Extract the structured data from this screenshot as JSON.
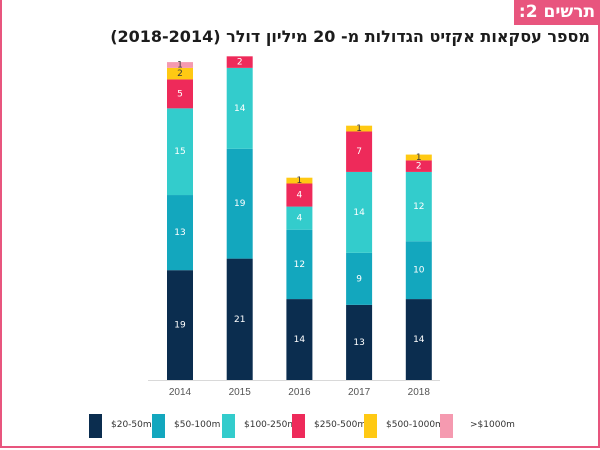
{
  "header": {
    "badge": "תרשים 2:",
    "title": "מספר עסקאות אקזיט הגדולות מ- 20 מיליון דולר (2018-2014)"
  },
  "colors": {
    "frame": "#e8557e",
    "badge_bg": "#e8557e"
  },
  "chart_data": {
    "type": "bar",
    "stacked": true,
    "title": "מספר עסקאות אקזיט הגדולות מ- 20 מיליון דולר (2018-2014)",
    "xlabel": "",
    "ylabel": "",
    "ylim": [
      0,
      56
    ],
    "grid": false,
    "legend_position": "bottom",
    "categories": [
      "2014",
      "2015",
      "2016",
      "2017",
      "2018"
    ],
    "series": [
      {
        "name": "$20-50m",
        "color": "#0b2d4f",
        "values": [
          19,
          21,
          14,
          13,
          14
        ],
        "label_dark": false
      },
      {
        "name": "$50-100m",
        "color": "#13a7be",
        "values": [
          13,
          19,
          12,
          9,
          10
        ],
        "label_dark": false
      },
      {
        "name": "$100-250m",
        "color": "#33cccc",
        "values": [
          15,
          14,
          4,
          14,
          12
        ],
        "label_dark": false
      },
      {
        "name": "$250-500m",
        "color": "#ee2a5a",
        "values": [
          5,
          2,
          4,
          7,
          2
        ],
        "label_dark": false
      },
      {
        "name": "$500-1000m",
        "color": "#ffc913",
        "values": [
          2,
          0,
          1,
          1,
          1
        ],
        "label_dark": true
      },
      {
        "name": ">$1000m",
        "color": "#f59ab0",
        "values": [
          1,
          0,
          0,
          0,
          0
        ],
        "label_dark": true
      }
    ]
  }
}
